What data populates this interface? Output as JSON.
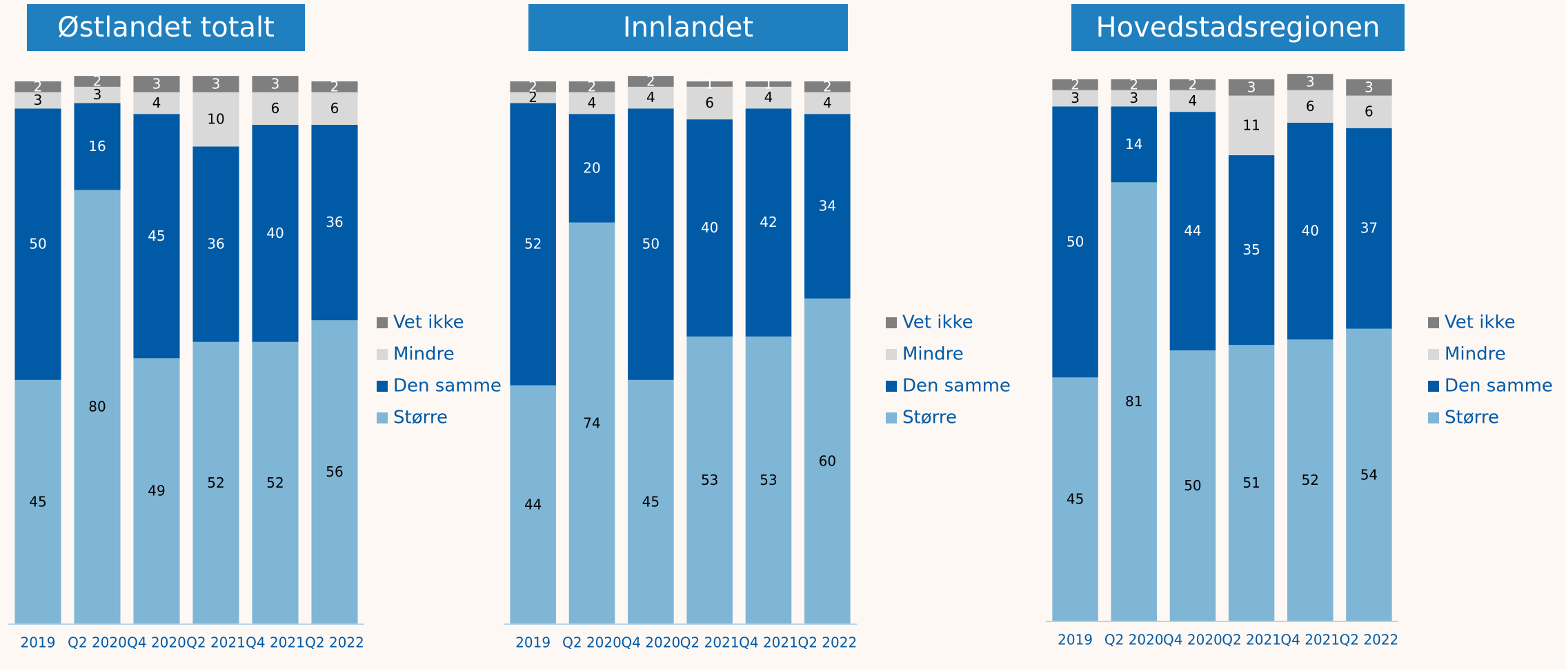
{
  "chart_data": [
    {
      "type": "stacked_bar",
      "title": "Østlandet totalt",
      "categories": [
        "2019",
        "Q2 2020",
        "Q4 2020",
        "Q2 2021",
        "Q4 2021",
        "Q2 2022"
      ],
      "ylim": [
        0,
        100
      ],
      "legend": "right",
      "series": [
        {
          "name": "Større",
          "color": "#7fb5d5",
          "values": [
            45,
            80,
            49,
            52,
            52,
            56
          ]
        },
        {
          "name": "Den samme",
          "color": "#005aa6",
          "values": [
            50,
            16,
            45,
            36,
            40,
            36
          ]
        },
        {
          "name": "Mindre",
          "color": "#d9d9d9",
          "values": [
            3,
            3,
            4,
            10,
            6,
            6
          ]
        },
        {
          "name": "Vet ikke",
          "color": "#7f7f7f",
          "values": [
            2,
            2,
            3,
            3,
            3,
            2
          ]
        }
      ]
    },
    {
      "type": "stacked_bar",
      "title": "Innlandet",
      "categories": [
        "2019",
        "Q2 2020",
        "Q4 2020",
        "Q2 2021",
        "Q4 2021",
        "Q2 2022"
      ],
      "ylim": [
        0,
        100
      ],
      "legend": "right",
      "series": [
        {
          "name": "Større",
          "color": "#7fb5d5",
          "values": [
            44,
            74,
            45,
            53,
            53,
            60
          ]
        },
        {
          "name": "Den samme",
          "color": "#005aa6",
          "values": [
            52,
            20,
            50,
            40,
            42,
            34
          ]
        },
        {
          "name": "Mindre",
          "color": "#d9d9d9",
          "values": [
            2,
            4,
            4,
            6,
            4,
            4
          ]
        },
        {
          "name": "Vet ikke",
          "color": "#7f7f7f",
          "values": [
            2,
            2,
            2,
            1,
            1,
            2
          ]
        }
      ]
    },
    {
      "type": "stacked_bar",
      "title": "Hovedstadsregionen",
      "categories": [
        "2019",
        "Q2 2020",
        "Q4 2020",
        "Q2 2021",
        "Q4 2021",
        "Q2 2022"
      ],
      "ylim": [
        0,
        100
      ],
      "legend": "right",
      "series": [
        {
          "name": "Større",
          "color": "#7fb5d5",
          "values": [
            45,
            81,
            50,
            51,
            52,
            54
          ]
        },
        {
          "name": "Den samme",
          "color": "#005aa6",
          "values": [
            50,
            14,
            44,
            35,
            40,
            37
          ]
        },
        {
          "name": "Mindre",
          "color": "#d9d9d9",
          "values": [
            3,
            3,
            4,
            11,
            6,
            6
          ]
        },
        {
          "name": "Vet ikke",
          "color": "#7f7f7f",
          "values": [
            2,
            2,
            2,
            3,
            3,
            3
          ]
        }
      ]
    }
  ]
}
